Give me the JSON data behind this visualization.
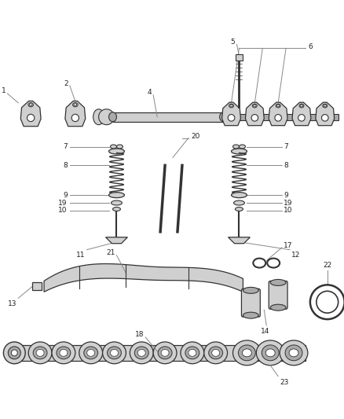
{
  "bg_color": "#ffffff",
  "part_color": "#d0d0d0",
  "part_dark": "#aaaaaa",
  "edge_color": "#333333",
  "line_color": "#888888",
  "label_color": "#222222",
  "label_fs": 6.5,
  "figsize": [
    4.39,
    5.33
  ],
  "dpi": 100
}
